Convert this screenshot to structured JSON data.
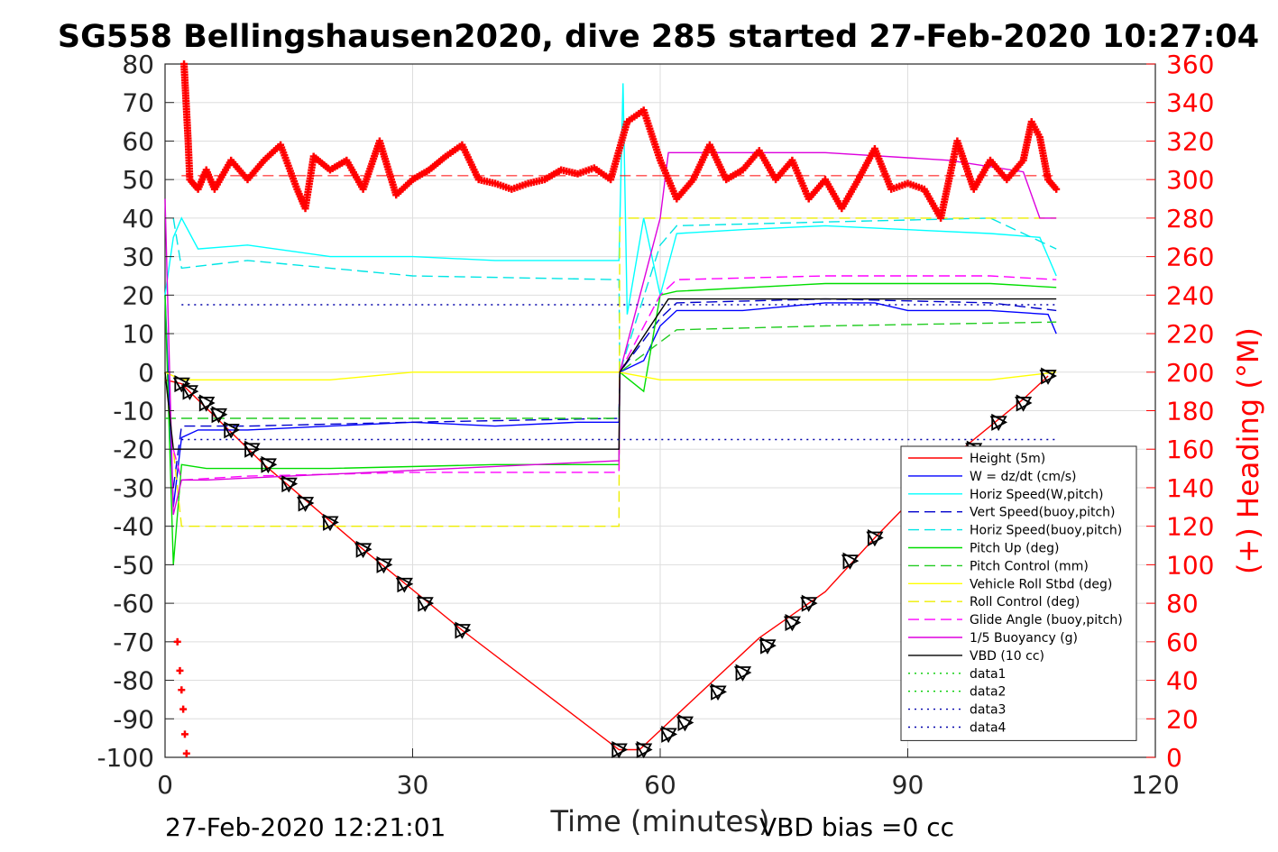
{
  "chart_data": {
    "type": "line",
    "title": "SG558 Bellingshausen2020, dive 285 started 27-Feb-2020 10:27:04",
    "xlabel": "Time (minutes)",
    "ylabel": "",
    "y2label": "(+) Heading (°M)",
    "xlim": [
      0,
      120
    ],
    "ylim": [
      -100,
      80
    ],
    "y2lim": [
      0,
      360
    ],
    "x_ticks": [
      "0",
      "30",
      "60",
      "90",
      "120"
    ],
    "y_ticks": [
      "80",
      "70",
      "60",
      "50",
      "40",
      "30",
      "20",
      "10",
      "0",
      "-10",
      "-20",
      "-30",
      "-40",
      "-50",
      "-60",
      "-70",
      "-80",
      "-90",
      "-100"
    ],
    "y2_ticks": [
      "360",
      "340",
      "320",
      "300",
      "280",
      "260",
      "240",
      "220",
      "200",
      "180",
      "160",
      "140",
      "120",
      "100",
      "80",
      "60",
      "40",
      "20",
      "0"
    ],
    "grid": true,
    "legend_position": "bottom-right",
    "footer_left": "27-Feb-2020 12:21:01",
    "footer_right": "VBD bias =0 cc",
    "colors": {
      "height": "#ff0000",
      "w": "#0000ff",
      "horiz_w": "#00ffff",
      "vert_buoy": "#0000cc",
      "horiz_buoy": "#00e5e5",
      "pitch": "#00dd00",
      "pitch_ctrl": "#22cc22",
      "roll": "#ffff00",
      "roll_ctrl": "#eeee00",
      "glide": "#ff00ff",
      "buoy": "#dd00dd",
      "vbd": "#000000",
      "data12": "#00cc00",
      "data34": "#0000aa"
    },
    "series": [
      {
        "name": "Height (5m)",
        "color": "#ff0000",
        "dash": "",
        "x": [
          0,
          2,
          12,
          24,
          36,
          55,
          57.5,
          60,
          66,
          72,
          80,
          86,
          96,
          104,
          107
        ],
        "y": [
          -2,
          -3,
          -24,
          -46,
          -67,
          -98,
          -98,
          -93,
          -81,
          -69,
          -57,
          -43,
          -21,
          -7,
          -1
        ]
      },
      {
        "name": "W = dz/dt (cm/s)",
        "color": "#0000ff",
        "dash": "",
        "x": [
          0,
          1,
          2,
          4,
          10,
          20,
          30,
          40,
          50,
          55,
          55.1,
          58,
          60,
          62,
          70,
          80,
          86,
          90,
          100,
          107,
          108
        ],
        "y": [
          20,
          -35,
          -17,
          -15,
          -15,
          -14,
          -13,
          -14,
          -13,
          -13,
          0,
          3,
          12,
          16,
          16,
          18,
          18,
          16,
          16,
          15,
          10
        ]
      },
      {
        "name": "Horiz Speed(W,pitch)",
        "color": "#00ffff",
        "dash": "",
        "x": [
          0,
          1,
          2,
          4,
          10,
          20,
          30,
          40,
          50,
          55,
          55.5,
          56,
          58,
          60,
          62,
          70,
          80,
          90,
          100,
          106,
          108
        ],
        "y": [
          20,
          35,
          40,
          32,
          33,
          30,
          30,
          29,
          29,
          29,
          75,
          15,
          40,
          20,
          36,
          37,
          38,
          37,
          36,
          35,
          25
        ]
      },
      {
        "name": "Vert Speed(buoy,pitch)",
        "color": "#0000cc",
        "dash": "12,6",
        "x": [
          1,
          2,
          10,
          30,
          55,
          55.1,
          60,
          62,
          80,
          100,
          108
        ],
        "y": [
          -30,
          -14,
          -14,
          -13,
          -12,
          0,
          14,
          18,
          19,
          18,
          16
        ]
      },
      {
        "name": "Horiz Speed(buoy,pitch)",
        "color": "#00e5e5",
        "dash": "12,6",
        "x": [
          1,
          2,
          10,
          30,
          55,
          55.1,
          60,
          62,
          80,
          100,
          108
        ],
        "y": [
          40,
          27,
          29,
          25,
          24,
          0,
          33,
          38,
          39,
          40,
          32
        ]
      },
      {
        "name": "Pitch Up (deg)",
        "color": "#00dd00",
        "dash": "",
        "x": [
          0,
          1,
          2,
          5,
          20,
          40,
          55,
          55.1,
          58,
          60,
          62,
          80,
          100,
          108
        ],
        "y": [
          20,
          -50,
          -24,
          -25,
          -25,
          -24,
          -24,
          0,
          -5,
          20,
          21,
          23,
          23,
          22
        ]
      },
      {
        "name": "Pitch Control (mm)",
        "color": "#22cc22",
        "dash": "12,6",
        "x": [
          0,
          2,
          55,
          55.1,
          62,
          80,
          108
        ],
        "y": [
          -12,
          -12,
          -12,
          0,
          11,
          12,
          13
        ]
      },
      {
        "name": "Vehicle Roll Stbd (deg)",
        "color": "#ffff00",
        "dash": "",
        "x": [
          0,
          2,
          10,
          20,
          30,
          40,
          50,
          55,
          60,
          70,
          80,
          90,
          100,
          108
        ],
        "y": [
          0,
          -2,
          -2,
          -2,
          0,
          0,
          0,
          0,
          -2,
          -2,
          -2,
          -2,
          -2,
          0
        ]
      },
      {
        "name": "Roll Control (deg)",
        "color": "#eeee00",
        "dash": "12,6",
        "x": [
          0,
          2,
          55,
          55.1,
          108
        ],
        "y": [
          0,
          -40,
          -40,
          40,
          40
        ]
      },
      {
        "name": "Glide Angle (buoy,pitch)",
        "color": "#ff00ff",
        "dash": "12,6",
        "x": [
          1,
          2,
          10,
          30,
          55,
          55.1,
          60,
          62,
          80,
          100,
          108
        ],
        "y": [
          -20,
          -28,
          -27,
          -26,
          -26,
          0,
          20,
          24,
          25,
          25,
          24
        ]
      },
      {
        "name": "1/5 Buoyancy (g)",
        "color": "#dd00dd",
        "dash": "",
        "x": [
          0,
          1,
          2,
          5,
          55,
          55.1,
          60,
          61,
          80,
          95,
          104,
          106,
          108
        ],
        "y": [
          45,
          -37,
          -28,
          -28,
          -23,
          0,
          40,
          57,
          57,
          55,
          52,
          40,
          40
        ]
      },
      {
        "name": "VBD (10 cc)",
        "color": "#000000",
        "dash": "",
        "x": [
          0,
          1,
          2,
          55,
          55.1,
          61,
          108
        ],
        "y": [
          0,
          -20,
          -20,
          -20,
          0,
          19,
          19
        ]
      },
      {
        "name": "data1",
        "color": "#00cc00",
        "dash": "2,5",
        "x": [],
        "y": []
      },
      {
        "name": "data2",
        "color": "#00cc00",
        "dash": "2,5",
        "x": [],
        "y": []
      },
      {
        "name": "data3",
        "color": "#0000aa",
        "dash": "2,5",
        "x": [
          2,
          108
        ],
        "y": [
          17.5,
          17.5
        ]
      },
      {
        "name": "data4",
        "color": "#0000aa",
        "dash": "2,5",
        "x": [
          2,
          108
        ],
        "y": [
          -17.5,
          -17.5
        ]
      }
    ],
    "heading": {
      "axis": "right",
      "marker": "+",
      "color": "#ff0000",
      "mean_line": 302,
      "x": [
        2.3,
        2.8,
        3,
        4,
        5,
        6,
        8,
        10,
        12,
        14,
        16,
        17,
        18,
        20,
        22,
        24,
        26,
        28,
        30,
        32,
        34,
        36,
        38,
        40,
        42,
        44,
        46,
        48,
        50,
        52,
        54,
        56,
        58,
        60,
        62,
        64,
        66,
        68,
        70,
        72,
        74,
        76,
        78,
        80,
        82,
        84,
        86,
        88,
        90,
        92,
        94,
        96,
        98,
        100,
        102,
        104,
        105,
        106,
        107,
        108
      ],
      "y": [
        360,
        320,
        300,
        295,
        305,
        295,
        310,
        300,
        310,
        318,
        295,
        285,
        312,
        305,
        310,
        295,
        320,
        292,
        300,
        305,
        312,
        318,
        300,
        298,
        295,
        298,
        300,
        305,
        303,
        306,
        300,
        330,
        336,
        310,
        290,
        300,
        318,
        300,
        305,
        315,
        300,
        310,
        290,
        300,
        285,
        300,
        316,
        295,
        298,
        295,
        280,
        320,
        295,
        310,
        300,
        310,
        330,
        322,
        300,
        295
      ]
    },
    "heading_descent_tail": {
      "x": [
        1.5,
        1.8,
        2.0,
        2.2,
        2.4,
        2.6
      ],
      "y": [
        60,
        45,
        35,
        25,
        12,
        2
      ]
    },
    "markers": {
      "type": "triangles",
      "color": "#000000",
      "x": [
        2,
        3,
        5,
        6.5,
        8,
        10.5,
        12.5,
        15,
        17,
        20,
        24,
        26.5,
        29,
        31.5,
        36,
        55,
        58,
        61,
        63,
        67,
        70,
        73,
        76,
        78,
        83,
        86,
        98,
        101,
        104,
        107
      ],
      "y": [
        -3,
        -5,
        -8,
        -11,
        -15,
        -20,
        -24,
        -29,
        -34,
        -39,
        -46,
        -50,
        -55,
        -60,
        -67,
        -98,
        -98,
        -94,
        -91,
        -83,
        -78,
        -71,
        -65,
        -60,
        -49,
        -43,
        -20,
        -13,
        -8,
        -1
      ]
    }
  }
}
